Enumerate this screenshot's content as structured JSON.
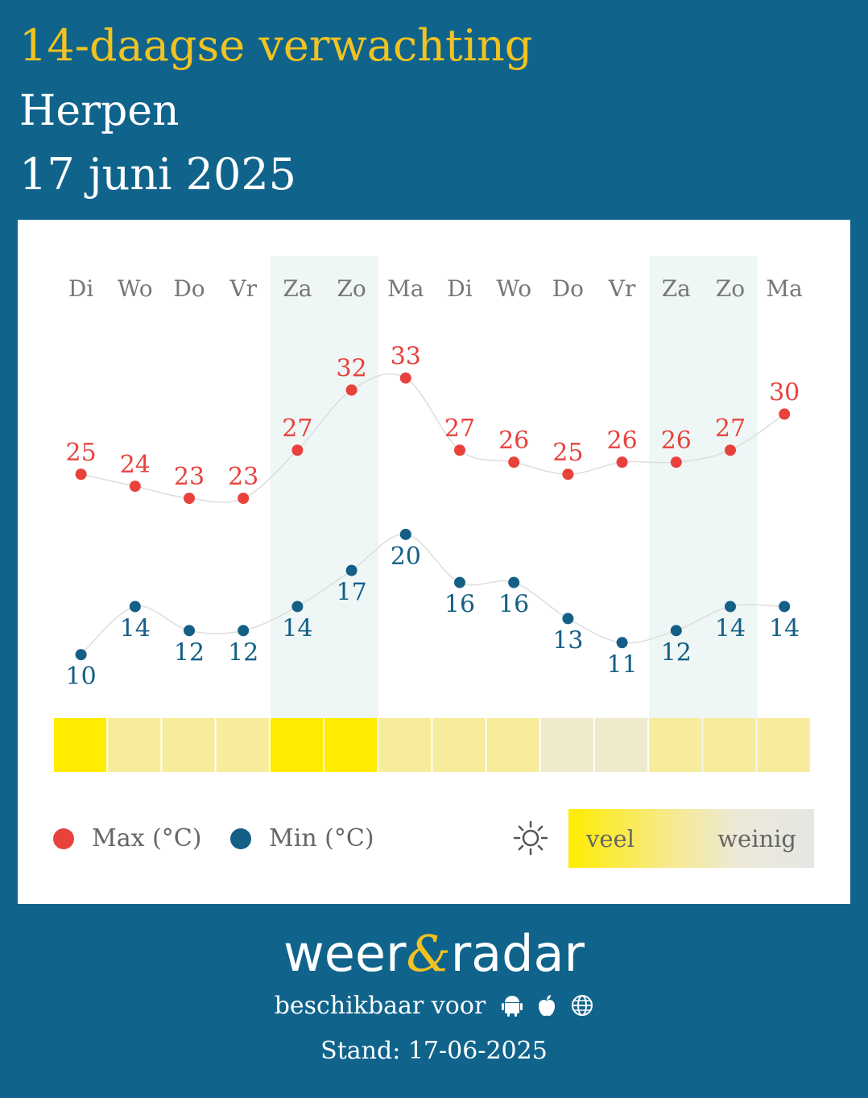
{
  "header": {
    "title": "14-daagse verwachting",
    "place": "Herpen",
    "date": "17 juni 2025"
  },
  "chart_data": {
    "type": "line",
    "categories": [
      "Di",
      "Wo",
      "Do",
      "Vr",
      "Za",
      "Zo",
      "Ma",
      "Di",
      "Wo",
      "Do",
      "Vr",
      "Za",
      "Zo",
      "Ma"
    ],
    "weekend_indices": [
      4,
      5,
      11,
      12
    ],
    "series": [
      {
        "name": "Max (°C)",
        "color": "#e8423d",
        "values": [
          25,
          24,
          23,
          23,
          27,
          32,
          33,
          27,
          26,
          25,
          26,
          26,
          27,
          30
        ]
      },
      {
        "name": "Min (°C)",
        "color": "#145f86",
        "values": [
          10,
          14,
          12,
          12,
          14,
          17,
          20,
          16,
          16,
          13,
          11,
          12,
          14,
          14
        ]
      }
    ],
    "sunshine": {
      "levels": [
        1.0,
        0.45,
        0.45,
        0.45,
        1.0,
        1.0,
        0.45,
        0.45,
        0.45,
        0.15,
        0.15,
        0.45,
        0.45,
        0.45
      ],
      "colors": {
        "high": "#ffec00",
        "medium": "#f7ec9b",
        "low": "#eeebcc"
      }
    },
    "legend": {
      "max_label": "Max (°C)",
      "min_label": "Min (°C)",
      "sun_icon": "sun-icon",
      "sun_high": "veel",
      "sun_low": "weinig"
    }
  },
  "footer": {
    "brand_left": "weer",
    "brand_amp": "&",
    "brand_right": "radar",
    "available": "beschikbaar voor",
    "platform_icons": [
      "android-icon",
      "apple-icon",
      "globe-icon"
    ],
    "stand": "Stand: 17-06-2025"
  }
}
